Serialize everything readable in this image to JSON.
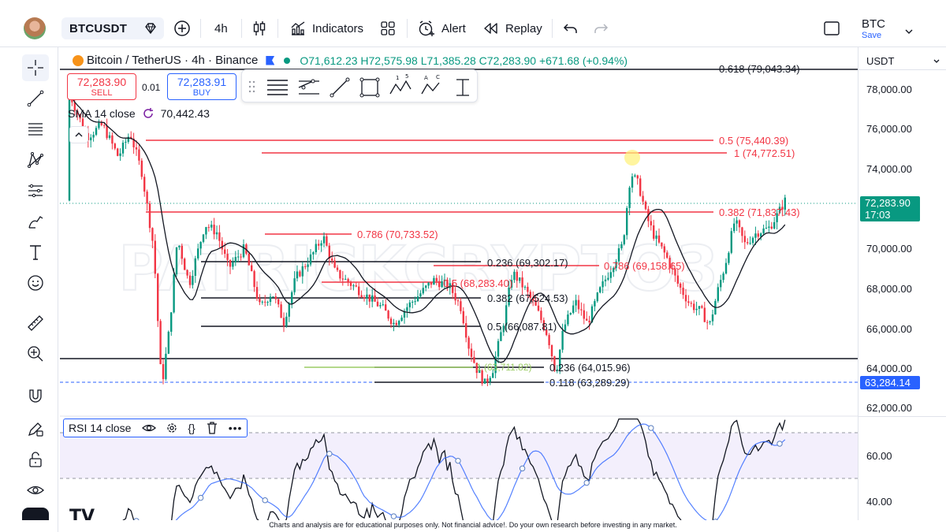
{
  "header": {
    "symbol": "BTCUSDT",
    "timeframe": "4h",
    "indicators_label": "Indicators",
    "alert_label": "Alert",
    "replay_label": "Replay",
    "layout_name": "BTC",
    "save_label": "Save"
  },
  "legend": {
    "title": "Bitcoin / TetherUS · 4h · Binance",
    "open": "O71,612.23",
    "high": "H72,575.98",
    "low": "L71,385.28",
    "close": "C72,283.90",
    "change": "+671.68 (+0.94%)"
  },
  "trade": {
    "sell_price": "72,283.90",
    "sell_label": "SELL",
    "quantity": "0.01",
    "buy_price": "72,283.91",
    "buy_label": "BUY"
  },
  "sma": {
    "label": "SMA 14 close",
    "value": "70,442.43"
  },
  "rsi": {
    "label": "RSI 14 close"
  },
  "price_axis": {
    "currency": "USDT",
    "labels": [
      "78,000.00",
      "76,000.00",
      "74,000.00",
      "70,000.00",
      "68,000.00",
      "66,000.00",
      "64,000.00",
      "62,000.00"
    ],
    "last_price": "72,283.90",
    "countdown": "17:03",
    "marked_price": "63,284.14"
  },
  "rsi_axis": {
    "labels": [
      "60.00",
      "40.00"
    ]
  },
  "fib_labels": {
    "f0618": "0.618 (79,043.34)",
    "f05a": "0.5 (75,440.39)",
    "f1": "1 (74,772.51)",
    "f0382a": "0.382 (71,837.43)",
    "f0786a": "0.786 (70,733.52)",
    "f0236a": "0.236 (69,302.17)",
    "f0786b": "0.786 (69,158.65)",
    "f05b": "0.5 (68,283.40)",
    "f0382b": "0.382 (67,524.53)",
    "f05c": "0.5 (66,087.81)",
    "f0236b": "0.236 (64,015.96)",
    "f0118": "0.118 (63,289.29)",
    "f1b": "1 (63,711.82)"
  },
  "colors": {
    "up": "#089981",
    "down": "#f23645",
    "fib_red": "#f23645",
    "accent": "#2962ff",
    "last_price": "#089981",
    "marked_price": "#2962ff"
  },
  "footer": "Charts and analysis are for educational purposes only. Not financial advice!. Do your own research before investing in any market."
}
